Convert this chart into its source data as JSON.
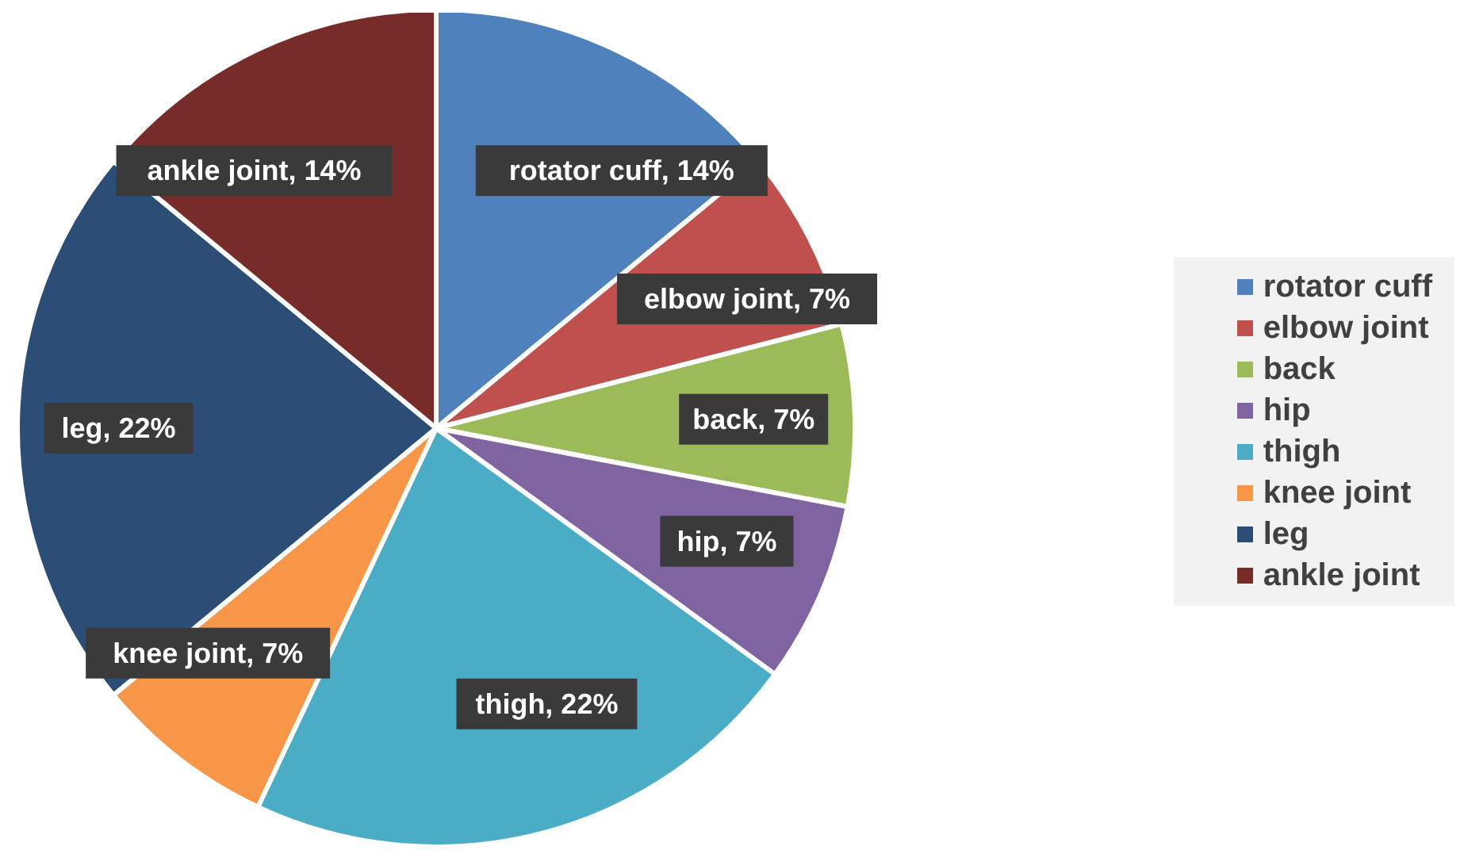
{
  "chart_data": {
    "type": "pie",
    "categories": [
      "rotator cuff",
      "elbow joint",
      "back",
      "hip",
      "thigh",
      "knee joint",
      "leg",
      "ankle joint"
    ],
    "values": [
      14,
      7,
      7,
      7,
      22,
      7,
      22,
      14
    ],
    "colors": [
      "#4f81bd",
      "#c0504d",
      "#9bbb59",
      "#8064a2",
      "#4bacc6",
      "#f79646",
      "#2c4d75",
      "#772c2a"
    ],
    "value_labels": [
      "rotator cuff, 14%",
      "elbow joint, 7%",
      "back, 7%",
      "hip, 7%",
      "thigh, 22%",
      "knee joint, 7%",
      "leg, 22%",
      "ankle joint, 14%"
    ],
    "legend": "right"
  }
}
